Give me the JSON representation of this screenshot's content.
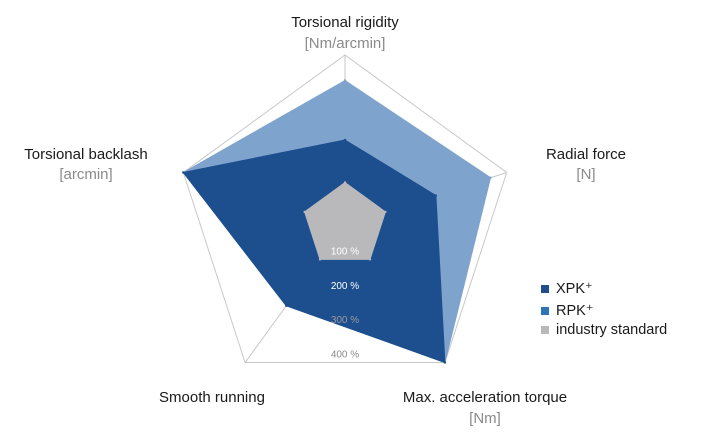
{
  "chart_data": {
    "type": "radar",
    "axes": [
      {
        "name": "Torsional rigidity",
        "unit": "[Nm/arcmin]"
      },
      {
        "name": "Radial force",
        "unit": "[N]"
      },
      {
        "name": "Max. acceleration torque",
        "unit": "[Nm]"
      },
      {
        "name": "Smooth running",
        "unit": ""
      },
      {
        "name": "Torsional backlash",
        "unit": "[arcmin]"
      }
    ],
    "rings": [
      {
        "value": 100,
        "label": "100 %"
      },
      {
        "value": 200,
        "label": "200 %"
      },
      {
        "value": 300,
        "label": "300 %"
      },
      {
        "value": 400,
        "label": "400 %"
      }
    ],
    "rmax": 400,
    "series": [
      {
        "name": "RPK⁺",
        "color": "#7ea3cd",
        "values": [
          340,
          360,
          400,
          235,
          400
        ]
      },
      {
        "name": "XPK⁺",
        "color": "#1d4f8e",
        "values": [
          200,
          225,
          400,
          235,
          400
        ]
      },
      {
        "name": "industry standard",
        "color": "#b9b9bb",
        "values": [
          100,
          100,
          100,
          100,
          100
        ]
      }
    ],
    "legend": {
      "position": "right",
      "items": [
        {
          "label": "XPK⁺",
          "color": "#1d4f8e"
        },
        {
          "label": "RPK⁺",
          "color": "#2f74b5"
        },
        {
          "label": "industry standard",
          "color": "#b9b9bb"
        }
      ]
    },
    "grid": true
  }
}
